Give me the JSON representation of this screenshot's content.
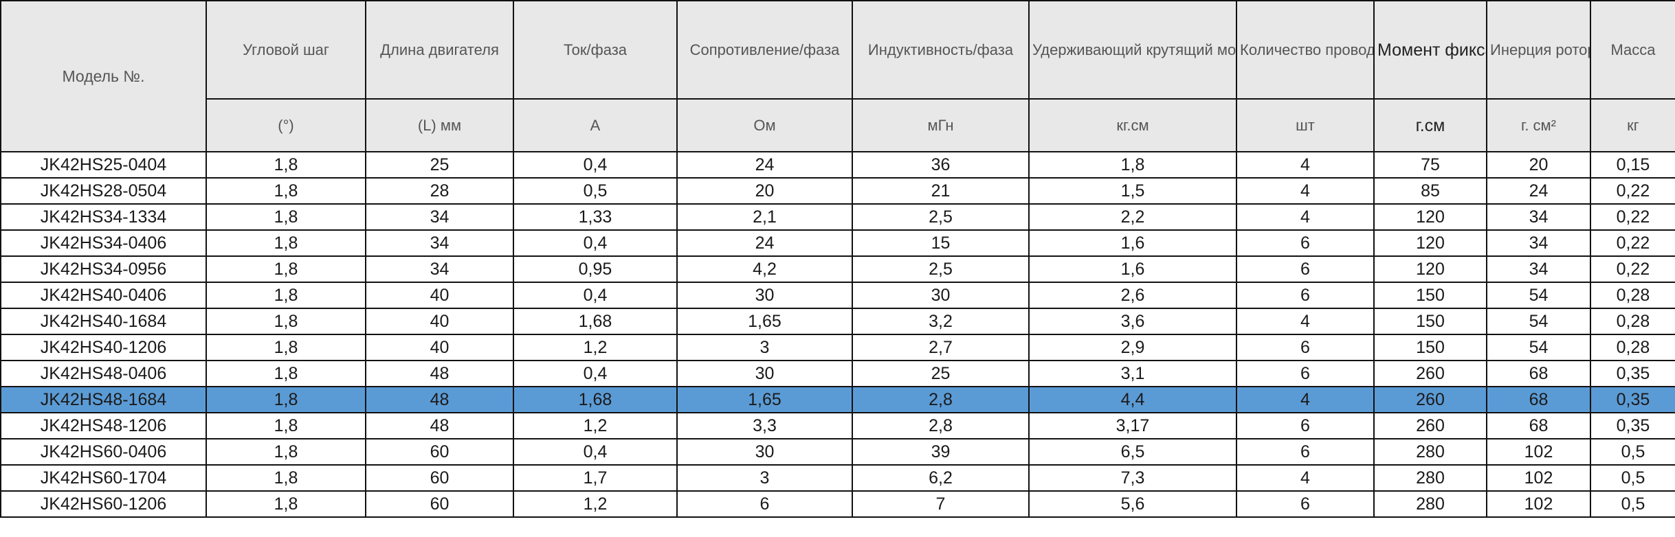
{
  "table": {
    "headers": {
      "model": "Модель №.",
      "step_angle": "Угловой шаг",
      "motor_length": "Длина двигателя",
      "current": "Ток/фаза",
      "resistance": "Сопротивление/фаза",
      "inductance": "Индуктивность/фаза",
      "holding_torque": "Удерживающий крутящий момент",
      "lead_wires": "Количество проводов",
      "detent_torque": "Момент фиксации",
      "rotor_inertia": "Инерция ротора",
      "mass": "Масса"
    },
    "units": {
      "step_angle": "(°)",
      "motor_length": "(L) мм",
      "current": "A",
      "resistance": "Ом",
      "inductance": "мГн",
      "holding_torque": "кг.см",
      "lead_wires": "шт",
      "detent_torque": "г.см",
      "rotor_inertia": "г. см²",
      "mass": "кг"
    },
    "selected_row_index": 9,
    "rows": [
      [
        "JK42HS25-0404",
        "1,8",
        "25",
        "0,4",
        "24",
        "36",
        "1,8",
        "4",
        "75",
        "20",
        "0,15"
      ],
      [
        "JK42HS28-0504",
        "1,8",
        "28",
        "0,5",
        "20",
        "21",
        "1,5",
        "4",
        "85",
        "24",
        "0,22"
      ],
      [
        "JK42HS34-1334",
        "1,8",
        "34",
        "1,33",
        "2,1",
        "2,5",
        "2,2",
        "4",
        "120",
        "34",
        "0,22"
      ],
      [
        "JK42HS34-0406",
        "1,8",
        "34",
        "0,4",
        "24",
        "15",
        "1,6",
        "6",
        "120",
        "34",
        "0,22"
      ],
      [
        "JK42HS34-0956",
        "1,8",
        "34",
        "0,95",
        "4,2",
        "2,5",
        "1,6",
        "6",
        "120",
        "34",
        "0,22"
      ],
      [
        "JK42HS40-0406",
        "1,8",
        "40",
        "0,4",
        "30",
        "30",
        "2,6",
        "6",
        "150",
        "54",
        "0,28"
      ],
      [
        "JK42HS40-1684",
        "1,8",
        "40",
        "1,68",
        "1,65",
        "3,2",
        "3,6",
        "4",
        "150",
        "54",
        "0,28"
      ],
      [
        "JK42HS40-1206",
        "1,8",
        "40",
        "1,2",
        "3",
        "2,7",
        "2,9",
        "6",
        "150",
        "54",
        "0,28"
      ],
      [
        "JK42HS48-0406",
        "1,8",
        "48",
        "0,4",
        "30",
        "25",
        "3,1",
        "6",
        "260",
        "68",
        "0,35"
      ],
      [
        "JK42HS48-1684",
        "1,8",
        "48",
        "1,68",
        "1,65",
        "2,8",
        "4,4",
        "4",
        "260",
        "68",
        "0,35"
      ],
      [
        "JK42HS48-1206",
        "1,8",
        "48",
        "1,2",
        "3,3",
        "2,8",
        "3,17",
        "6",
        "260",
        "68",
        "0,35"
      ],
      [
        "JK42HS60-0406",
        "1,8",
        "60",
        "0,4",
        "30",
        "39",
        "6,5",
        "6",
        "280",
        "102",
        "0,5"
      ],
      [
        "JK42HS60-1704",
        "1,8",
        "60",
        "1,7",
        "3",
        "6,2",
        "7,3",
        "4",
        "280",
        "102",
        "0,5"
      ],
      [
        "JK42HS60-1206",
        "1,8",
        "60",
        "1,2",
        "6",
        "7",
        "5,6",
        "6",
        "280",
        "102",
        "0,5"
      ]
    ]
  }
}
